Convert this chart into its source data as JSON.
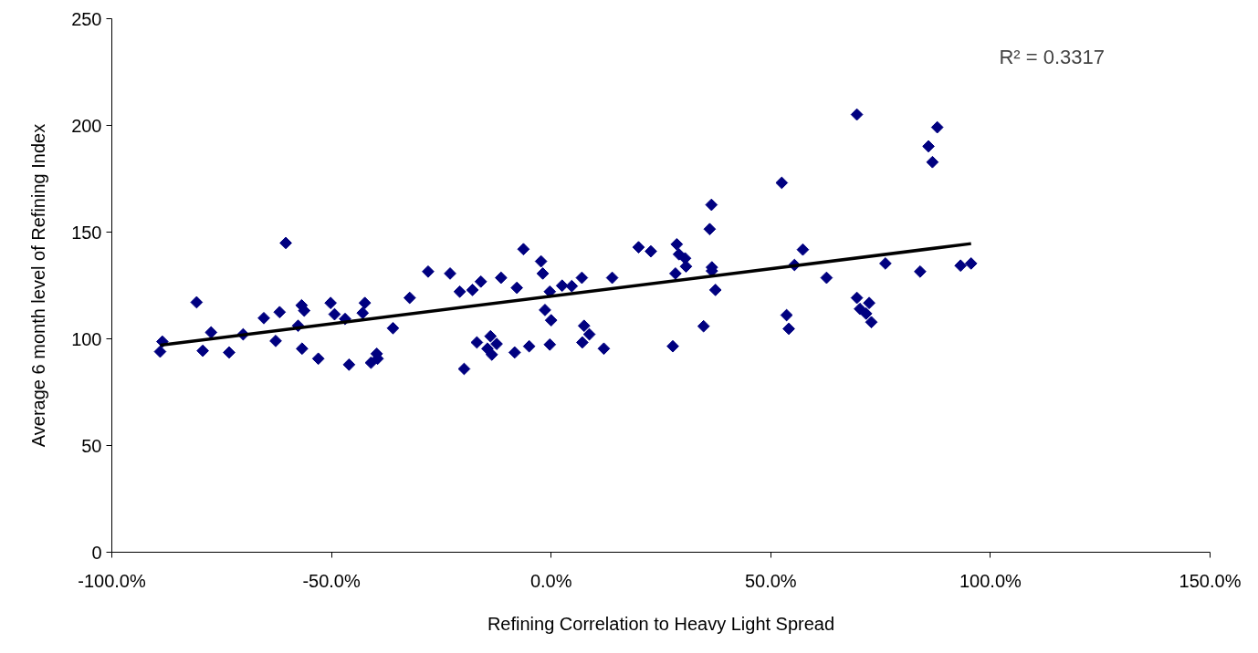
{
  "chart_data": {
    "type": "scatter",
    "xlabel": "Refining Correlation to Heavy Light Spread",
    "ylabel": "Average 6 month level of Refining Index",
    "annotations": [
      "R² = 0.3317"
    ],
    "xlim": [
      -100,
      150
    ],
    "xticks": [
      {
        "value": -100,
        "label": "-100.0%"
      },
      {
        "value": -50,
        "label": "-50.0%"
      },
      {
        "value": 0,
        "label": "0.0%"
      },
      {
        "value": 50,
        "label": "50.0%"
      },
      {
        "value": 100,
        "label": "100.0%"
      },
      {
        "value": 150,
        "label": "150.0%"
      }
    ],
    "ylim": [
      0,
      250
    ],
    "yticks": [
      0,
      50,
      100,
      150,
      200,
      250
    ],
    "grid": false,
    "series": [
      {
        "marker": "diamond",
        "color": "#000080",
        "x": [
          -89.0,
          -88.5,
          -80.7,
          -79.3,
          -77.4,
          -73.3,
          -70.1,
          -65.4,
          -62.7,
          -60.4,
          -61.8,
          -57.6,
          -56.8,
          -56.2,
          -56.7,
          -53.0,
          -50.2,
          -49.3,
          -46.9,
          -46.0,
          -42.4,
          -42.9,
          -41.0,
          -39.7,
          -39.5,
          -36.0,
          -32.2,
          -28.0,
          -23.0,
          -20.8,
          -17.9,
          -16.0,
          -19.8,
          -16.9,
          -13.8,
          -12.4,
          -14.5,
          -13.5,
          -11.4,
          -7.8,
          -8.3,
          -6.3,
          -5.0,
          -2.3,
          -1.9,
          -0.3,
          -1.4,
          0.0,
          -0.3,
          2.5,
          4.7,
          7.0,
          7.5,
          8.7,
          7.1,
          12.0,
          13.9,
          19.9,
          22.7,
          28.6,
          29.1,
          30.5,
          30.7,
          28.3,
          27.7,
          34.7,
          36.5,
          36.1,
          36.6,
          36.6,
          37.4,
          52.5,
          57.3,
          55.4,
          53.6,
          54.1,
          62.7,
          69.6,
          72.4,
          70.3,
          71.7,
          72.9,
          76.1,
          84.0,
          85.9,
          86.8,
          93.2,
          95.6,
          69.6,
          87.9
        ],
        "values": [
          94.0,
          98.7,
          117.1,
          94.4,
          103.0,
          93.6,
          102.1,
          109.7,
          99.0,
          144.9,
          112.5,
          106.1,
          115.7,
          113.2,
          95.4,
          90.7,
          116.8,
          111.5,
          109.3,
          87.9,
          116.8,
          112.1,
          88.8,
          93.0,
          90.7,
          105.0,
          119.2,
          131.5,
          130.6,
          122.1,
          122.9,
          126.8,
          85.9,
          98.3,
          101.2,
          97.6,
          95.4,
          92.6,
          128.6,
          123.9,
          93.6,
          142.0,
          96.5,
          136.3,
          130.6,
          122.1,
          113.5,
          108.7,
          97.3,
          124.9,
          124.7,
          128.6,
          106.1,
          102.1,
          98.3,
          95.4,
          128.6,
          142.9,
          141.0,
          144.3,
          139.6,
          137.7,
          133.9,
          130.6,
          96.5,
          105.9,
          162.8,
          151.4,
          133.5,
          131.8,
          122.9,
          173.1,
          141.8,
          134.6,
          111.1,
          104.7,
          128.6,
          119.2,
          116.8,
          114.0,
          111.8,
          107.8,
          135.3,
          131.5,
          190.2,
          182.8,
          134.3,
          135.3,
          205.1,
          199.1
        ]
      },
      {
        "type": "line",
        "color": "#000000",
        "x": [
          -89.0,
          95.6
        ],
        "values": [
          97.0,
          144.6
        ]
      }
    ]
  }
}
